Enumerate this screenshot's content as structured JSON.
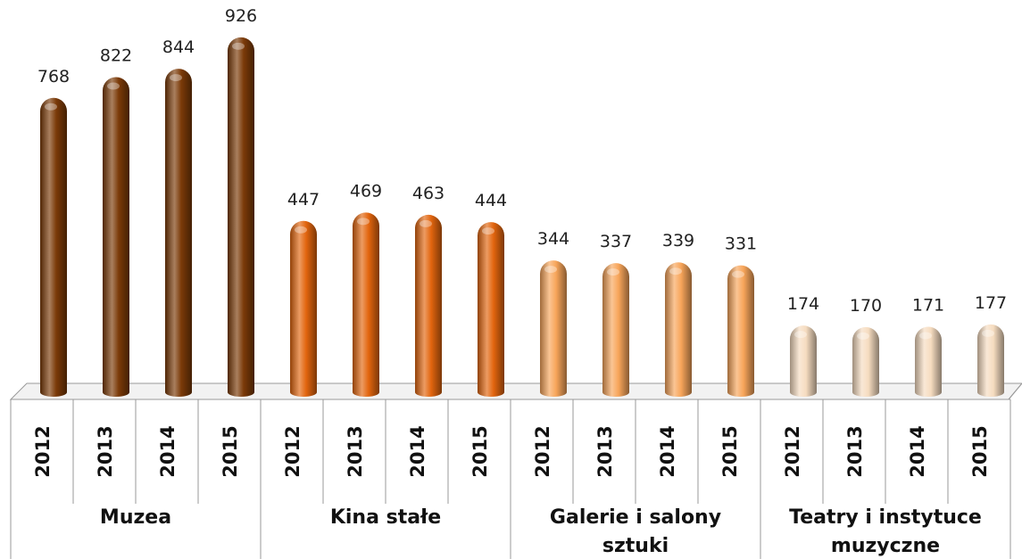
{
  "chart_data": {
    "type": "bar",
    "ylim": [
      0,
      1000
    ],
    "groups": [
      {
        "name": "Muzea",
        "color": "#7b3a08",
        "categories": [
          "2012",
          "2013",
          "2014",
          "2015"
        ],
        "values": [
          768,
          822,
          844,
          926
        ]
      },
      {
        "name": "Kina stałe",
        "color": "#e2650e",
        "categories": [
          "2012",
          "2013",
          "2014",
          "2015"
        ],
        "values": [
          447,
          469,
          463,
          444
        ]
      },
      {
        "name": "Galerie i salony sztuki",
        "color": "#f8a55a",
        "categories": [
          "2012",
          "2013",
          "2014",
          "2015"
        ],
        "values": [
          344,
          337,
          339,
          331
        ]
      },
      {
        "name": "Teatry i instytuce muzyczne",
        "color": "#f6dcc0",
        "categories": [
          "2012",
          "2013",
          "2014",
          "2015"
        ],
        "values": [
          174,
          170,
          171,
          177
        ]
      }
    ]
  }
}
